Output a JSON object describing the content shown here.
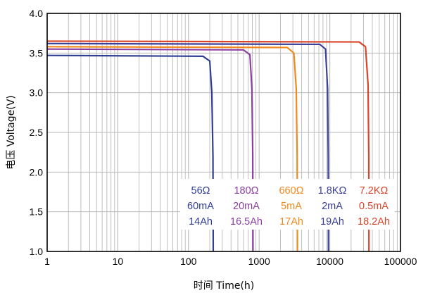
{
  "chart_data": {
    "type": "line",
    "title": "",
    "xlabel": "时间 Time(h)",
    "ylabel": "电压 Voltage(V)",
    "xscale": "log",
    "xlim": [
      1,
      100000
    ],
    "ylim": [
      1.0,
      4.0
    ],
    "grid": true,
    "x_ticks": [
      "1",
      "10",
      "100",
      "1000",
      "10000",
      "100000"
    ],
    "y_ticks": [
      "1.0",
      "1.5",
      "2.0",
      "2.5",
      "3.0",
      "3.5",
      "4.0"
    ],
    "legend_placement": "bottom-right",
    "series": [
      {
        "resistance": "56Ω",
        "current": "60mA",
        "capacity": "14Ah",
        "color": "#2f3f94",
        "plateau": 3.47,
        "x": [
          1,
          160,
          200,
          214,
          222,
          224
        ],
        "y": [
          3.47,
          3.46,
          3.4,
          3.0,
          2.2,
          1.0
        ]
      },
      {
        "resistance": "180Ω",
        "current": "20mA",
        "capacity": "16.5Ah",
        "color": "#8b3fa0",
        "plateau": 3.55,
        "x": [
          1,
          600,
          740,
          790,
          812,
          818
        ],
        "y": [
          3.55,
          3.54,
          3.48,
          3.05,
          2.2,
          1.0
        ]
      },
      {
        "resistance": "660Ω",
        "current": "5mA",
        "capacity": "17Ah",
        "color": "#f08a1c",
        "plateau": 3.58,
        "x": [
          1,
          2500,
          3100,
          3350,
          3450,
          3480
        ],
        "y": [
          3.58,
          3.57,
          3.5,
          3.05,
          2.2,
          1.0
        ]
      },
      {
        "resistance": "1.8KΩ",
        "current": "2mA",
        "capacity": "19Ah",
        "color": "#3a3f98",
        "plateau": 3.62,
        "x": [
          1,
          7200,
          8700,
          9300,
          9500,
          9560
        ],
        "y": [
          3.62,
          3.61,
          3.55,
          3.05,
          2.2,
          1.0
        ]
      },
      {
        "resistance": "7.2KΩ",
        "current": "0.5mA",
        "capacity": "18.2Ah",
        "color": "#d9442a",
        "plateau": 3.65,
        "x": [
          1,
          26000,
          32000,
          34800,
          35600,
          35800
        ],
        "y": [
          3.65,
          3.64,
          3.58,
          3.1,
          2.2,
          1.0
        ]
      }
    ]
  }
}
